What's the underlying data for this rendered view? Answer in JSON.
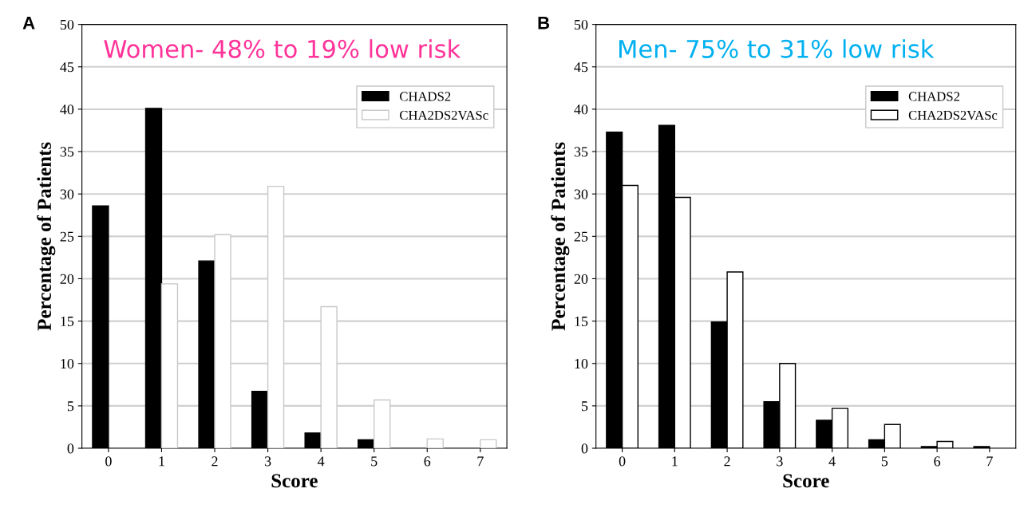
{
  "chart_data": [
    {
      "type": "bar",
      "title": "Women- 48% to 19% low risk",
      "xlabel": "Score",
      "ylabel": "Percentage of Patients",
      "annotations": [
        "A"
      ],
      "categories": [
        "0",
        "1",
        "2",
        "3",
        "4",
        "5",
        "6",
        "7"
      ],
      "series": [
        {
          "name": "CHADS2",
          "color": "#000000",
          "values": [
            28.6,
            40.1,
            22.1,
            6.7,
            1.8,
            1.0,
            null,
            null
          ]
        },
        {
          "name": "CHA2DS2VASc",
          "color": "#ffffff",
          "values": [
            null,
            19.4,
            25.2,
            30.9,
            16.7,
            5.7,
            1.1,
            1.0
          ]
        }
      ],
      "ylim": [
        0,
        50
      ],
      "yticks": [
        0,
        5,
        10,
        15,
        20,
        25,
        30,
        35,
        40,
        45,
        50
      ],
      "grid": "y",
      "legend": "top right"
    },
    {
      "type": "bar",
      "title": "Men- 75% to 31% low risk",
      "xlabel": "Score",
      "ylabel": "Percentage of Patients",
      "annotations": [
        "B"
      ],
      "categories": [
        "0",
        "1",
        "2",
        "3",
        "4",
        "5",
        "6",
        "7"
      ],
      "series": [
        {
          "name": "CHADS2",
          "color": "#000000",
          "values": [
            37.3,
            38.1,
            14.9,
            5.5,
            3.3,
            1.0,
            0.2,
            0.2
          ]
        },
        {
          "name": "CHA2DS2VASc",
          "color": "#ffffff",
          "values": [
            31.0,
            29.6,
            20.8,
            10.0,
            4.7,
            2.8,
            0.8,
            null
          ]
        }
      ],
      "ylim": [
        0,
        50
      ],
      "yticks": [
        0,
        5,
        10,
        15,
        20,
        25,
        30,
        35,
        40,
        45,
        50
      ],
      "grid": "y",
      "legend": "top right"
    }
  ]
}
